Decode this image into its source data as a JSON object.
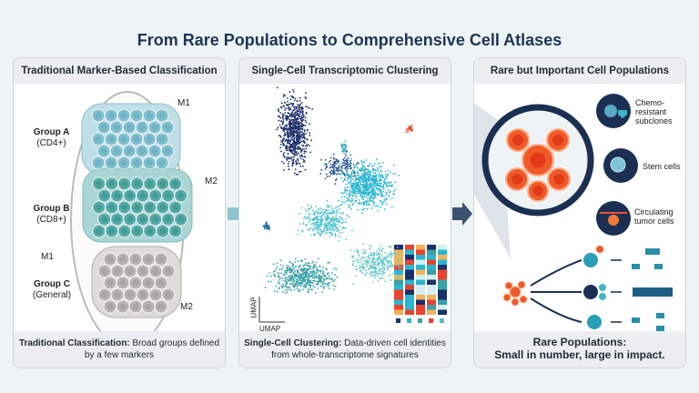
{
  "title": "From Rare Populations to Comprehensive Cell Atlases",
  "panels": {
    "left": {
      "header": "Traditional Marker-Based Classification",
      "groups": [
        {
          "name": "Group A",
          "marker": "(CD4+)",
          "color": "#6fb3c6"
        },
        {
          "name": "Group B",
          "marker": "(CD8+)",
          "color": "#3f9c98"
        },
        {
          "name": "Group C",
          "marker": "(General)",
          "color": "#a8a6a2"
        }
      ],
      "markers": [
        "M1",
        "M2",
        "M1",
        "M2"
      ],
      "footer_bold": "Traditional Classification:",
      "footer_text": " Broad groups defined by a few markers"
    },
    "middle": {
      "header": "Single-Cell Transcriptomic Clustering",
      "axis_x": "UMAP",
      "axis_y": "UMAP",
      "footer_bold": "Single-Cell Clustering:",
      "footer_text": " Data-driven cell identities from whole-transcriptome signatures"
    },
    "right": {
      "header": "Rare but Important Cell Populations",
      "callouts": [
        "Chemo-resistant subclones",
        "Stem cells",
        "Circulating tumor cells"
      ],
      "footer_line1": "Rare Populations:",
      "footer_line2": "Small in number, large in impact.",
      "accent": "#f05a28",
      "navy": "#1b2f52"
    }
  }
}
